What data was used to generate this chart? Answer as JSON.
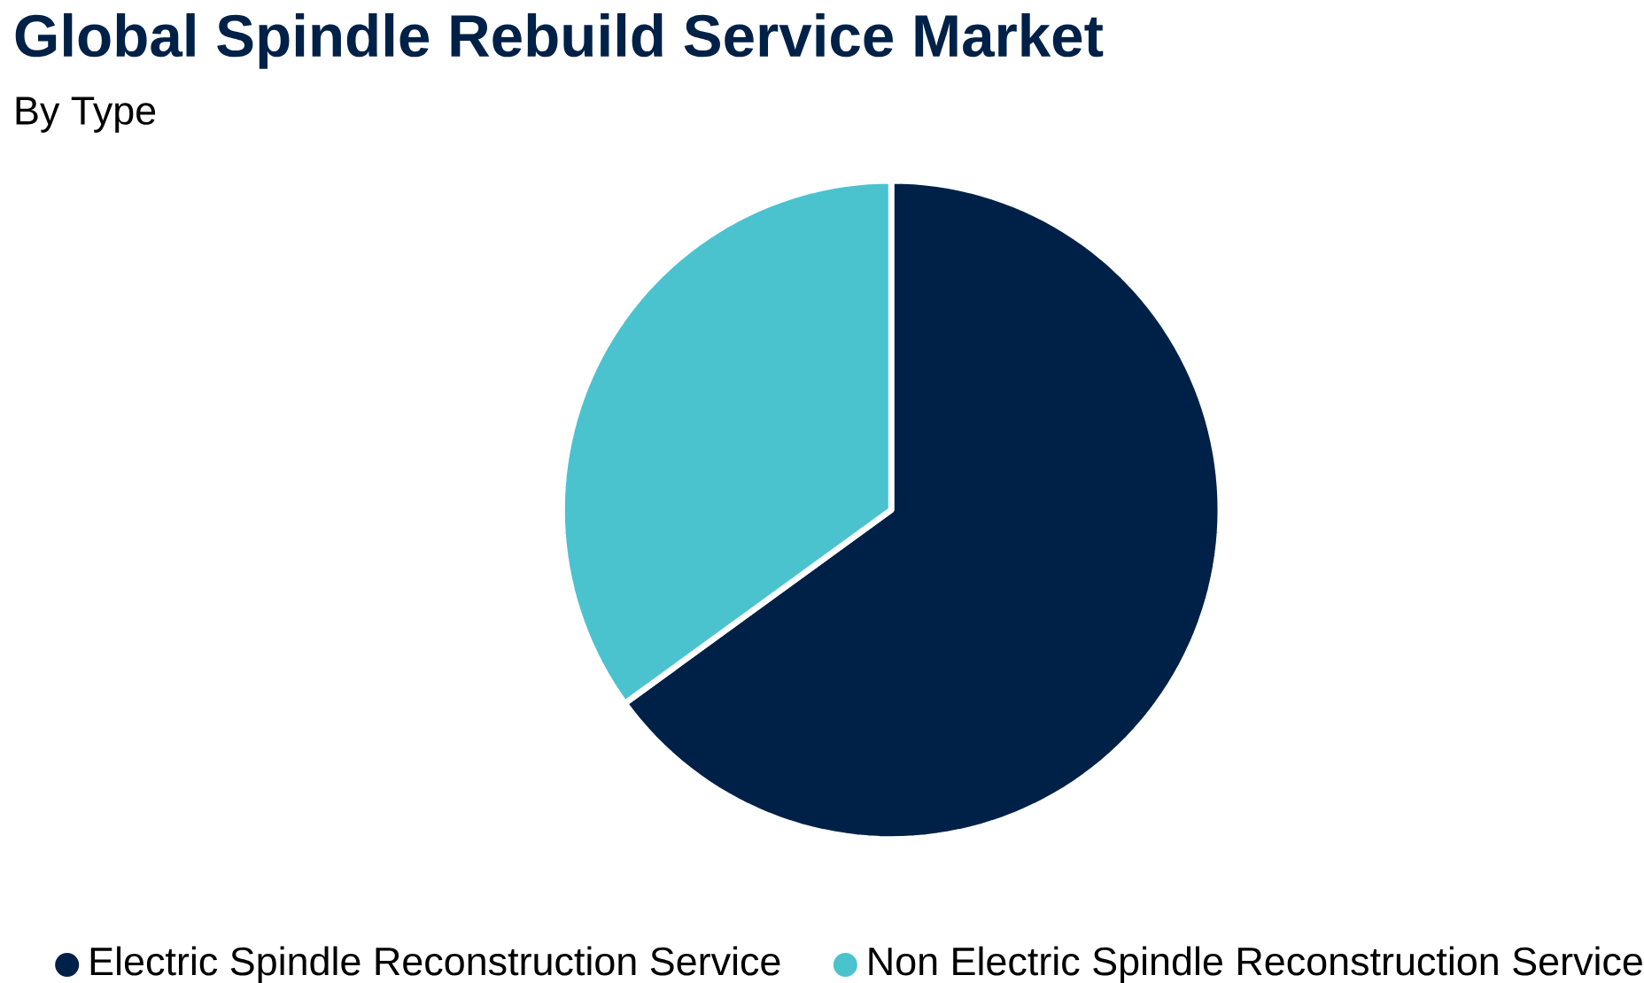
{
  "chart_data": {
    "type": "pie",
    "title": "Global Spindle Rebuild Service Market",
    "subtitle": "By Type",
    "categories": [
      "Electric Spindle Reconstruction Service",
      "Non Electric Spindle Reconstruction Service"
    ],
    "values": [
      65,
      35
    ],
    "colors": [
      "#002147",
      "#4bc3cf"
    ],
    "legend": "bottom"
  }
}
